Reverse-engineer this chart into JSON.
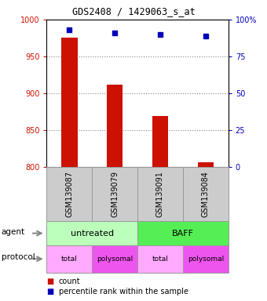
{
  "title": "GDS2408 / 1429063_s_at",
  "samples": [
    "GSM139087",
    "GSM139079",
    "GSM139091",
    "GSM139084"
  ],
  "counts": [
    975,
    912,
    869,
    806
  ],
  "percentile_ranks": [
    93,
    91,
    90,
    89
  ],
  "ylim_left": [
    800,
    1000
  ],
  "ylim_right": [
    0,
    100
  ],
  "yticks_left": [
    800,
    850,
    900,
    950,
    1000
  ],
  "yticks_right": [
    0,
    25,
    50,
    75,
    100
  ],
  "bar_color": "#cc1100",
  "dot_color": "#0000bb",
  "agent_colors": [
    "#bbffbb",
    "#55ee55"
  ],
  "agent_texts": [
    "untreated",
    "BAFF"
  ],
  "proto_colors_even": "#ffaaff",
  "proto_colors_odd": "#ee55ee",
  "proto_texts": [
    "total",
    "polysomal",
    "total",
    "polysomal"
  ],
  "sample_bg_color": "#cccccc",
  "sample_border_color": "#999999",
  "grid_color": "#888888",
  "bar_width": 0.35,
  "legend_count_color": "#cc1100",
  "legend_pct_color": "#0000bb"
}
